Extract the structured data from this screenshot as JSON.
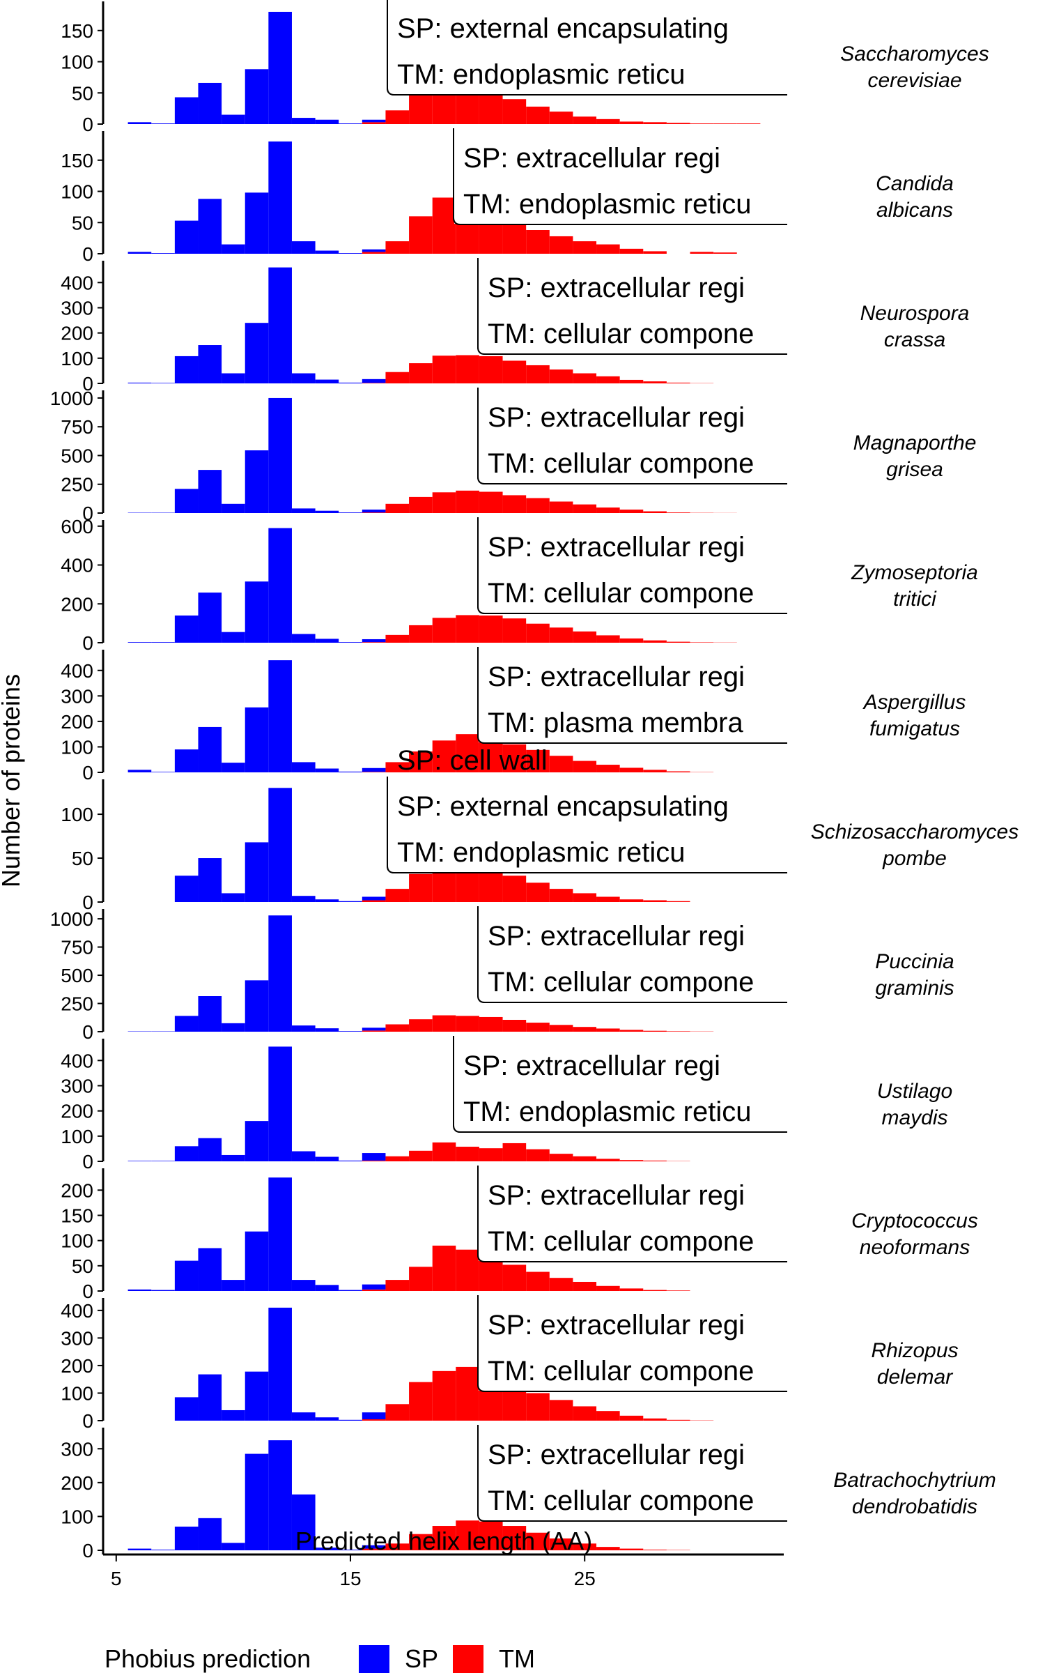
{
  "chart_data": {
    "type": "bar",
    "subtype": "stacked-histogram-faceted",
    "xlabel": "Predicted helix length (AA)",
    "ylabel": "Number of proteins",
    "xlim": [
      4.5,
      33.5
    ],
    "x_ticks": [
      5,
      15,
      25
    ],
    "bins": [
      6,
      7,
      8,
      9,
      10,
      11,
      12,
      13,
      14,
      15,
      16,
      17,
      18,
      19,
      20,
      21,
      22,
      23,
      24,
      25,
      26,
      27,
      28,
      29,
      30,
      31,
      32
    ],
    "legend": {
      "title": "Phobius prediction",
      "position": "bottom",
      "entries": [
        {
          "name": "SP",
          "color": "#0000FF"
        },
        {
          "name": "TM",
          "color": "#FF0000"
        }
      ]
    },
    "grid": false,
    "facets": [
      {
        "species": [
          "Saccharomyces",
          "cerevisiae"
        ],
        "ymax": 190,
        "yticks": [
          0,
          50,
          100,
          150
        ],
        "sp": [
          3,
          1,
          43,
          66,
          15,
          88,
          180,
          10,
          7,
          1,
          4,
          0,
          0,
          0,
          0,
          0,
          0,
          0,
          0,
          0,
          0,
          0,
          0,
          0,
          0,
          0,
          0
        ],
        "tm": [
          0,
          0,
          0,
          0,
          0,
          0,
          0,
          0,
          0,
          0,
          3,
          22,
          50,
          60,
          66,
          55,
          40,
          28,
          20,
          12,
          8,
          4,
          3,
          2,
          1,
          1,
          1
        ],
        "annotation_lines": [
          "SP: cell wall",
          "SP: external encapsulating",
          "TM: endoplasmic reticu"
        ]
      },
      {
        "species": [
          "Candida",
          "albicans"
        ],
        "ymax": 190,
        "yticks": [
          0,
          50,
          100,
          150
        ],
        "sp": [
          3,
          1,
          53,
          88,
          15,
          98,
          180,
          20,
          5,
          1,
          4,
          0,
          0,
          0,
          0,
          0,
          0,
          0,
          0,
          0,
          0,
          0,
          0,
          0,
          0,
          0,
          0
        ],
        "tm": [
          0,
          0,
          0,
          0,
          0,
          0,
          0,
          0,
          0,
          0,
          3,
          20,
          60,
          90,
          108,
          70,
          52,
          38,
          28,
          20,
          15,
          8,
          4,
          0,
          3,
          2,
          0
        ],
        "annotation_lines": [
          "SP: extracellular regi",
          "TM: endoplasmic reticu"
        ]
      },
      {
        "species": [
          "Neurospora",
          "crassa"
        ],
        "ymax": 470,
        "yticks": [
          0,
          100,
          200,
          300,
          400
        ],
        "sp": [
          3,
          2,
          108,
          152,
          40,
          240,
          460,
          40,
          15,
          3,
          15,
          0,
          0,
          0,
          0,
          0,
          0,
          0,
          0,
          0,
          0,
          0,
          0,
          0,
          0,
          0,
          0
        ],
        "tm": [
          0,
          0,
          0,
          0,
          0,
          0,
          0,
          0,
          0,
          0,
          2,
          45,
          80,
          110,
          112,
          108,
          90,
          72,
          55,
          40,
          28,
          14,
          8,
          3,
          1,
          0,
          0
        ],
        "annotation_lines": [
          "SP: extracellular regi",
          "TM: cellular compone"
        ]
      },
      {
        "species": [
          "Magnaporthe",
          "grisea"
        ],
        "ymax": 1030,
        "yticks": [
          0,
          250,
          500,
          750,
          1000
        ],
        "sp": [
          3,
          3,
          210,
          375,
          80,
          545,
          1000,
          40,
          20,
          5,
          25,
          0,
          0,
          0,
          0,
          0,
          0,
          0,
          0,
          0,
          0,
          0,
          0,
          0,
          0,
          0,
          0
        ],
        "tm": [
          0,
          0,
          0,
          0,
          0,
          0,
          0,
          0,
          0,
          0,
          5,
          80,
          140,
          180,
          195,
          185,
          155,
          130,
          100,
          75,
          48,
          30,
          15,
          5,
          2,
          1,
          0
        ],
        "annotation_lines": [
          "SP: extracellular regi",
          "TM: cellular compone"
        ]
      },
      {
        "species": [
          "Zymoseptoria",
          "tritici"
        ],
        "ymax": 610,
        "yticks": [
          0,
          200,
          400,
          600
        ],
        "sp": [
          3,
          3,
          140,
          258,
          55,
          315,
          590,
          45,
          20,
          3,
          15,
          0,
          0,
          0,
          0,
          0,
          0,
          0,
          0,
          0,
          0,
          0,
          0,
          0,
          0,
          0,
          0
        ],
        "tm": [
          0,
          0,
          0,
          0,
          0,
          0,
          0,
          0,
          0,
          0,
          3,
          40,
          90,
          128,
          142,
          140,
          125,
          98,
          78,
          58,
          38,
          22,
          12,
          5,
          2,
          1,
          0
        ],
        "annotation_lines": [
          "SP: extracellular regi",
          "TM: cellular compone"
        ]
      },
      {
        "species": [
          "Aspergillus",
          "fumigatus"
        ],
        "ymax": 465,
        "yticks": [
          0,
          100,
          200,
          300,
          400
        ],
        "sp": [
          10,
          2,
          90,
          178,
          38,
          255,
          440,
          40,
          15,
          3,
          15,
          0,
          0,
          0,
          0,
          0,
          0,
          0,
          0,
          0,
          0,
          0,
          0,
          0,
          0,
          0,
          0
        ],
        "tm": [
          0,
          0,
          0,
          0,
          0,
          0,
          0,
          0,
          0,
          0,
          2,
          40,
          82,
          125,
          150,
          138,
          110,
          88,
          65,
          45,
          30,
          18,
          10,
          4,
          1,
          0,
          0
        ],
        "annotation_lines": [
          "SP: extracellular regi",
          "TM: plasma membra"
        ]
      },
      {
        "species": [
          "Schizosaccharomyces",
          "pombe"
        ],
        "ymax": 135,
        "yticks": [
          0,
          50,
          100
        ],
        "sp": [
          0,
          0,
          30,
          50,
          10,
          68,
          130,
          7,
          3,
          1,
          4,
          0,
          0,
          0,
          0,
          0,
          0,
          0,
          0,
          0,
          0,
          0,
          0,
          0,
          0,
          0,
          0
        ],
        "tm": [
          0,
          0,
          0,
          0,
          0,
          0,
          0,
          0,
          0,
          0,
          2,
          15,
          32,
          45,
          48,
          40,
          30,
          22,
          15,
          10,
          6,
          3,
          2,
          1,
          0,
          0,
          0
        ],
        "annotation_lines": [
          "SP: cell wall",
          "SP: external encapsulating",
          "TM: endoplasmic reticu"
        ]
      },
      {
        "species": [
          "Puccinia",
          "graminis"
        ],
        "ymax": 1050,
        "yticks": [
          0,
          250,
          500,
          750,
          1000
        ],
        "sp": [
          3,
          3,
          140,
          315,
          75,
          455,
          1030,
          55,
          30,
          5,
          25,
          0,
          0,
          0,
          0,
          0,
          0,
          0,
          0,
          0,
          0,
          0,
          0,
          0,
          0,
          0,
          0
        ],
        "tm": [
          0,
          0,
          0,
          0,
          0,
          0,
          0,
          0,
          0,
          0,
          10,
          65,
          110,
          145,
          140,
          130,
          105,
          80,
          60,
          42,
          28,
          16,
          8,
          4,
          2,
          0,
          0
        ],
        "annotation_lines": [
          "SP: extracellular regi",
          "TM: cellular compone"
        ]
      },
      {
        "species": [
          "Ustilago",
          "maydis"
        ],
        "ymax": 470,
        "yticks": [
          0,
          100,
          200,
          300,
          400
        ],
        "sp": [
          2,
          2,
          60,
          92,
          25,
          160,
          455,
          40,
          18,
          3,
          30,
          0,
          0,
          0,
          0,
          0,
          0,
          0,
          0,
          0,
          0,
          0,
          0,
          0,
          0,
          0,
          0
        ],
        "tm": [
          0,
          0,
          0,
          0,
          0,
          0,
          0,
          0,
          0,
          0,
          3,
          20,
          42,
          75,
          58,
          52,
          72,
          48,
          30,
          20,
          10,
          5,
          3,
          1,
          0,
          0,
          0
        ],
        "annotation_lines": [
          "SP: extracellular regi",
          "TM: endoplasmic reticu"
        ]
      },
      {
        "species": [
          "Cryptococcus",
          "neoformans"
        ],
        "ymax": 235,
        "yticks": [
          0,
          50,
          100,
          150,
          200
        ],
        "sp": [
          3,
          2,
          60,
          85,
          22,
          118,
          225,
          22,
          12,
          2,
          10,
          0,
          0,
          0,
          0,
          0,
          0,
          0,
          0,
          0,
          0,
          0,
          0,
          0,
          0,
          0,
          0
        ],
        "tm": [
          0,
          0,
          0,
          0,
          0,
          0,
          0,
          0,
          0,
          0,
          3,
          22,
          48,
          90,
          82,
          68,
          52,
          38,
          26,
          18,
          10,
          5,
          2,
          1,
          0,
          0,
          0
        ],
        "annotation_lines": [
          "SP: extracellular regi",
          "TM: cellular compone"
        ]
      },
      {
        "species": [
          "Rhizopus",
          "delemar"
        ],
        "ymax": 430,
        "yticks": [
          0,
          100,
          200,
          300,
          400
        ],
        "sp": [
          0,
          0,
          85,
          168,
          38,
          178,
          410,
          30,
          12,
          3,
          25,
          0,
          0,
          0,
          0,
          0,
          0,
          0,
          0,
          0,
          0,
          0,
          0,
          0,
          0,
          0,
          0
        ],
        "tm": [
          0,
          0,
          0,
          0,
          0,
          0,
          0,
          0,
          0,
          0,
          5,
          60,
          140,
          180,
          195,
          178,
          130,
          100,
          75,
          52,
          35,
          18,
          8,
          3,
          1,
          0,
          0
        ],
        "annotation_lines": [
          "SP: extracellular regi",
          "TM: cellular compone"
        ]
      },
      {
        "species": [
          "Batrachochytrium",
          "dendrobatidis"
        ],
        "ymax": 350,
        "yticks": [
          0,
          100,
          200,
          300
        ],
        "sp": [
          5,
          2,
          70,
          95,
          22,
          285,
          325,
          165,
          8,
          2,
          10,
          0,
          0,
          0,
          0,
          0,
          0,
          0,
          0,
          0,
          0,
          0,
          0,
          0,
          0,
          0,
          0
        ],
        "tm": [
          0,
          0,
          0,
          0,
          0,
          0,
          0,
          0,
          0,
          0,
          5,
          20,
          48,
          72,
          88,
          85,
          72,
          52,
          35,
          20,
          10,
          5,
          2,
          1,
          0,
          0,
          0
        ],
        "annotation_lines": [
          "SP: extracellular regi",
          "TM: cellular compone"
        ]
      }
    ]
  }
}
